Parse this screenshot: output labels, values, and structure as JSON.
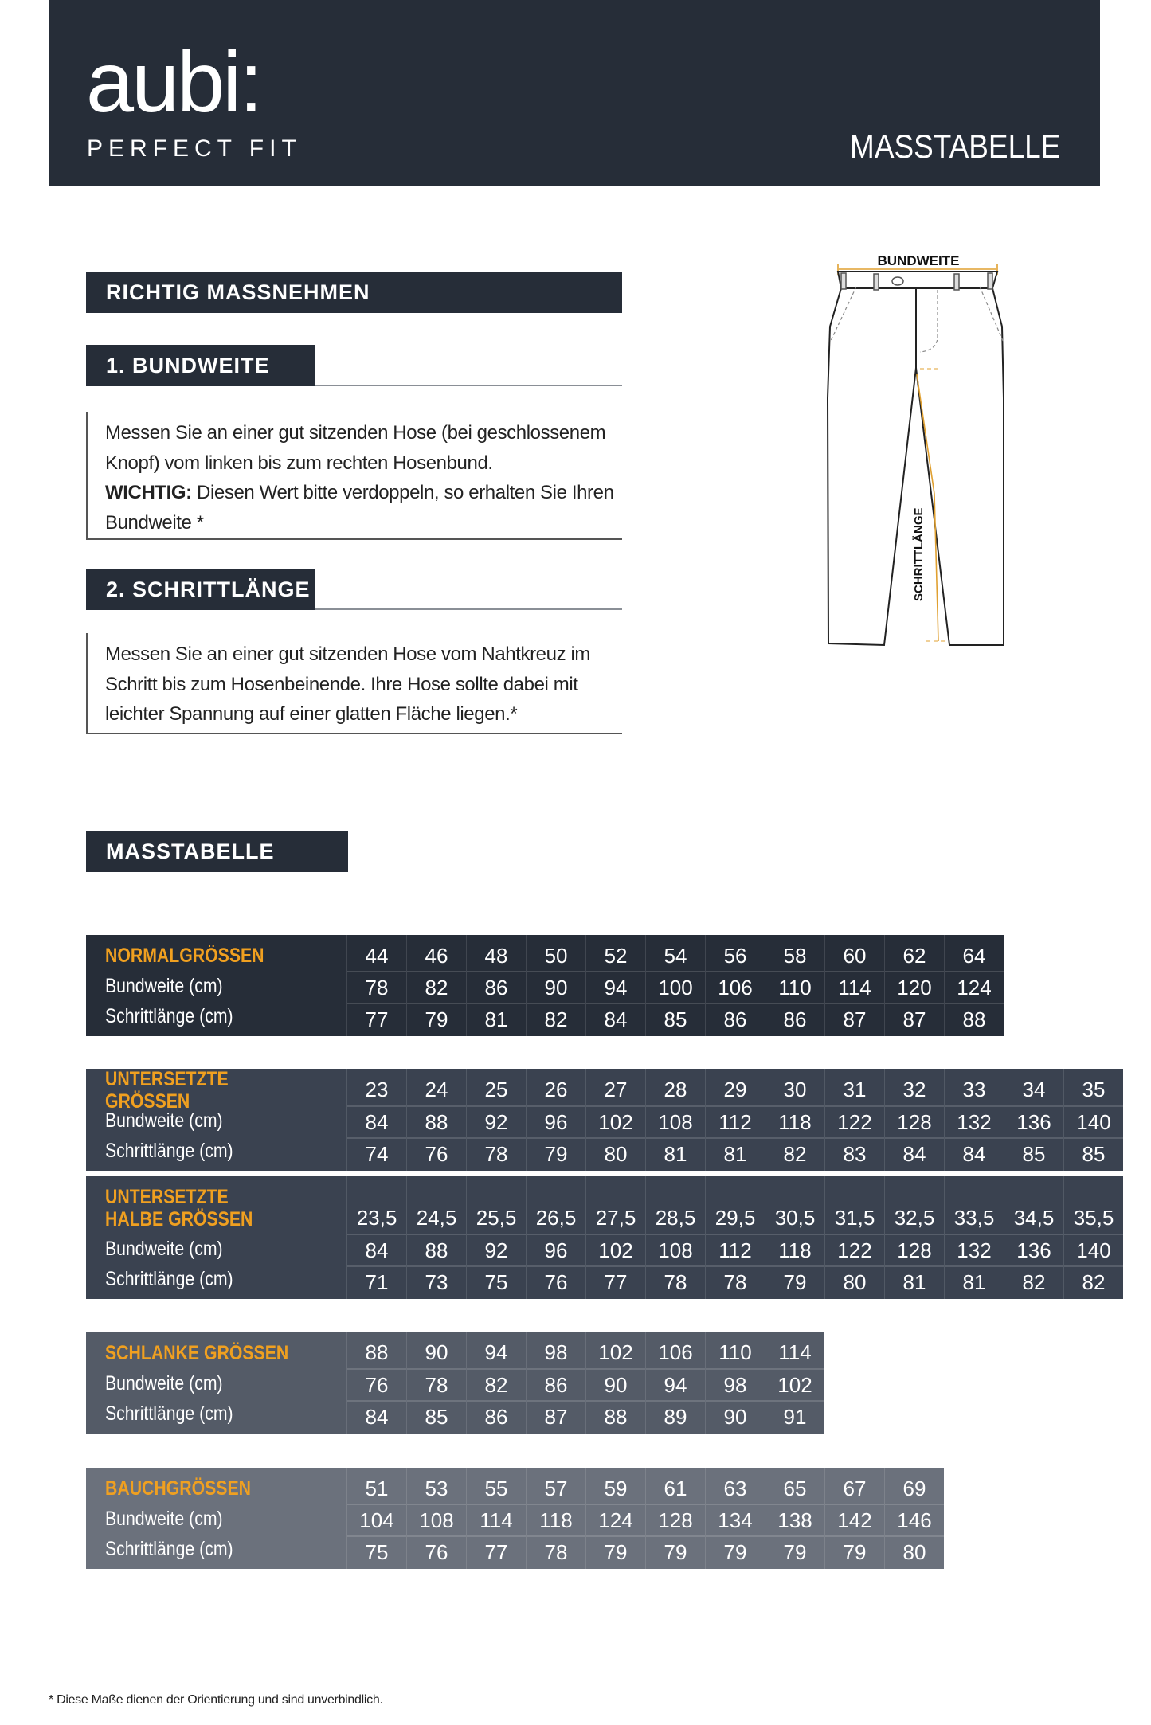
{
  "header": {
    "logo": "aubi:",
    "tagline": "PERFECT FIT",
    "title": "MASSTABELLE"
  },
  "guide": {
    "title": "RICHTIG MASSNEHMEN",
    "step1": {
      "title": "1. BUNDWEITE",
      "text": "Messen Sie an einer gut sitzenden Hose (bei geschlossenem Knopf) vom linken bis zum rechten Hosenbund.",
      "important_label": "WICHTIG:",
      "important_text": " Diesen Wert bitte verdoppeln, so erhalten Sie Ihren Bundweite *"
    },
    "step2": {
      "title": "2. SCHRITTLÄNGE",
      "text": "Messen Sie an einer gut sitzenden Hose vom Nahtkreuz im Schritt bis zum Hosenbeinende. Ihre Hose sollte dabei mit leichter Spannung auf einer glatten Fläche liegen.*"
    }
  },
  "illustration": {
    "waist_label": "BUNDWEITE",
    "inseam_label": "SCHRITTLÄNGE"
  },
  "size_table": {
    "title": "MASSTABELLE",
    "row_labels": [
      "Bundweite (cm)",
      "Schrittlänge (cm)"
    ],
    "tables": [
      {
        "name": "NORMALGRÖSSEN",
        "color": "#262d38",
        "sizes": [
          "44",
          "46",
          "48",
          "50",
          "52",
          "54",
          "56",
          "58",
          "60",
          "62",
          "64"
        ],
        "waist": [
          "78",
          "82",
          "86",
          "90",
          "94",
          "100",
          "106",
          "110",
          "114",
          "120",
          "124"
        ],
        "inseam": [
          "77",
          "79",
          "81",
          "82",
          "84",
          "85",
          "86",
          "86",
          "87",
          "87",
          "88"
        ]
      },
      {
        "name": "UNTERSETZTE GRÖSSEN",
        "color": "#3a4250",
        "sizes": [
          "23",
          "24",
          "25",
          "26",
          "27",
          "28",
          "29",
          "30",
          "31",
          "32",
          "33",
          "34",
          "35"
        ],
        "waist": [
          "84",
          "88",
          "92",
          "96",
          "102",
          "108",
          "112",
          "118",
          "122",
          "128",
          "132",
          "136",
          "140"
        ],
        "inseam": [
          "74",
          "76",
          "78",
          "79",
          "80",
          "81",
          "81",
          "82",
          "83",
          "84",
          "84",
          "85",
          "85"
        ]
      },
      {
        "name": "UNTERSETZTE\nHALBE GRÖSSEN",
        "color": "#3a4250",
        "sizes": [
          "23,5",
          "24,5",
          "25,5",
          "26,5",
          "27,5",
          "28,5",
          "29,5",
          "30,5",
          "31,5",
          "32,5",
          "33,5",
          "34,5",
          "35,5"
        ],
        "waist": [
          "84",
          "88",
          "92",
          "96",
          "102",
          "108",
          "112",
          "118",
          "122",
          "128",
          "132",
          "136",
          "140"
        ],
        "inseam": [
          "71",
          "73",
          "75",
          "76",
          "77",
          "78",
          "78",
          "79",
          "80",
          "81",
          "81",
          "82",
          "82"
        ]
      },
      {
        "name": "SCHLANKE GRÖSSEN",
        "color": "#545b67",
        "sizes": [
          "88",
          "90",
          "94",
          "98",
          "102",
          "106",
          "110",
          "114"
        ],
        "waist": [
          "76",
          "78",
          "82",
          "86",
          "90",
          "94",
          "98",
          "102"
        ],
        "inseam": [
          "84",
          "85",
          "86",
          "87",
          "88",
          "89",
          "90",
          "91"
        ]
      },
      {
        "name": "BAUCHGRÖSSEN",
        "color": "#6b717c",
        "sizes": [
          "51",
          "53",
          "55",
          "57",
          "59",
          "61",
          "63",
          "65",
          "67",
          "69"
        ],
        "waist": [
          "104",
          "108",
          "114",
          "118",
          "124",
          "128",
          "134",
          "138",
          "142",
          "146"
        ],
        "inseam": [
          "75",
          "76",
          "77",
          "78",
          "79",
          "79",
          "79",
          "79",
          "79",
          "80"
        ]
      }
    ]
  },
  "footnote": "* Diese Maße dienen der Orientierung und sind unverbindlich.",
  "colors": {
    "dark": "#262d38",
    "accent": "#f0a020"
  }
}
